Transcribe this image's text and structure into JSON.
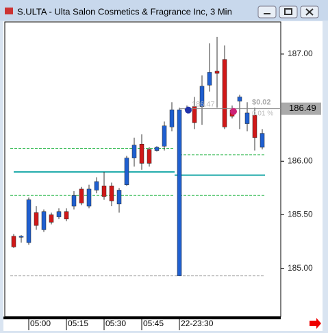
{
  "chart_data": {
    "type": "candlestick",
    "title": "S.ULTA - Ulta Salon Cosmetics & Fragrance Inc, 3 Min",
    "open": [
      185.3,
      185.29,
      185.24,
      185.52,
      185.36,
      185.5,
      185.48,
      185.53,
      185.58,
      185.74,
      185.58,
      185.73,
      185.77,
      185.77,
      185.6,
      185.78,
      186.03,
      186.16,
      186.11,
      186.1,
      186.14,
      186.32,
      184.93,
      186.48,
      186.51,
      186.51,
      186.71,
      186.84,
      186.95,
      186.48,
      186.56,
      186.35,
      186.43,
      186.13
    ],
    "high": [
      185.32,
      185.31,
      185.66,
      185.58,
      185.55,
      185.52,
      185.56,
      185.56,
      185.72,
      185.76,
      185.78,
      185.85,
      185.9,
      185.8,
      185.75,
      186.05,
      186.22,
      186.25,
      186.13,
      186.14,
      186.37,
      186.55,
      186.5,
      186.52,
      186.6,
      186.8,
      187.1,
      187.16,
      187.08,
      186.52,
      186.62,
      186.55,
      186.5,
      186.3
    ],
    "low": [
      185.19,
      185.24,
      185.22,
      185.36,
      185.34,
      185.41,
      185.46,
      185.44,
      185.55,
      185.59,
      185.56,
      185.7,
      185.64,
      185.58,
      185.52,
      185.77,
      185.95,
      185.92,
      185.95,
      186.09,
      186.1,
      186.28,
      184.93,
      186.45,
      186.3,
      186.34,
      186.65,
      186.5,
      186.3,
      186.4,
      186.3,
      186.28,
      186.1,
      186.11
    ],
    "close": [
      185.2,
      185.3,
      185.64,
      185.4,
      185.53,
      185.43,
      185.53,
      185.46,
      185.68,
      185.61,
      185.74,
      185.81,
      185.67,
      185.63,
      185.73,
      186.03,
      186.15,
      185.98,
      185.98,
      186.13,
      186.33,
      186.48,
      186.48,
      186.49,
      186.36,
      186.7,
      186.83,
      186.82,
      186.32,
      186.42,
      186.6,
      186.45,
      186.22,
      186.26
    ],
    "up_color": "#1f5fd0",
    "down_color": "#d01818",
    "ylim": [
      184.55,
      187.3
    ],
    "yticks": [
      {
        "value": 185,
        "label": "185.00"
      },
      {
        "value": 185.5,
        "label": "185.50"
      },
      {
        "value": 186,
        "label": "186.00"
      },
      {
        "value": 187,
        "label": "187.00"
      }
    ],
    "x_labels": [
      "05:00",
      "05:15",
      "05:30",
      "05:45",
      "22-23:30"
    ],
    "last_price": {
      "value": 186.49,
      "label": "186.49"
    },
    "levels_left": [
      186.12,
      185.9,
      185.68
    ],
    "levels_right": [
      186.06,
      185.87,
      185.68
    ],
    "low_level": 184.93,
    "annotations": [
      "186.47",
      "$0.02",
      "0.01 %"
    ]
  }
}
